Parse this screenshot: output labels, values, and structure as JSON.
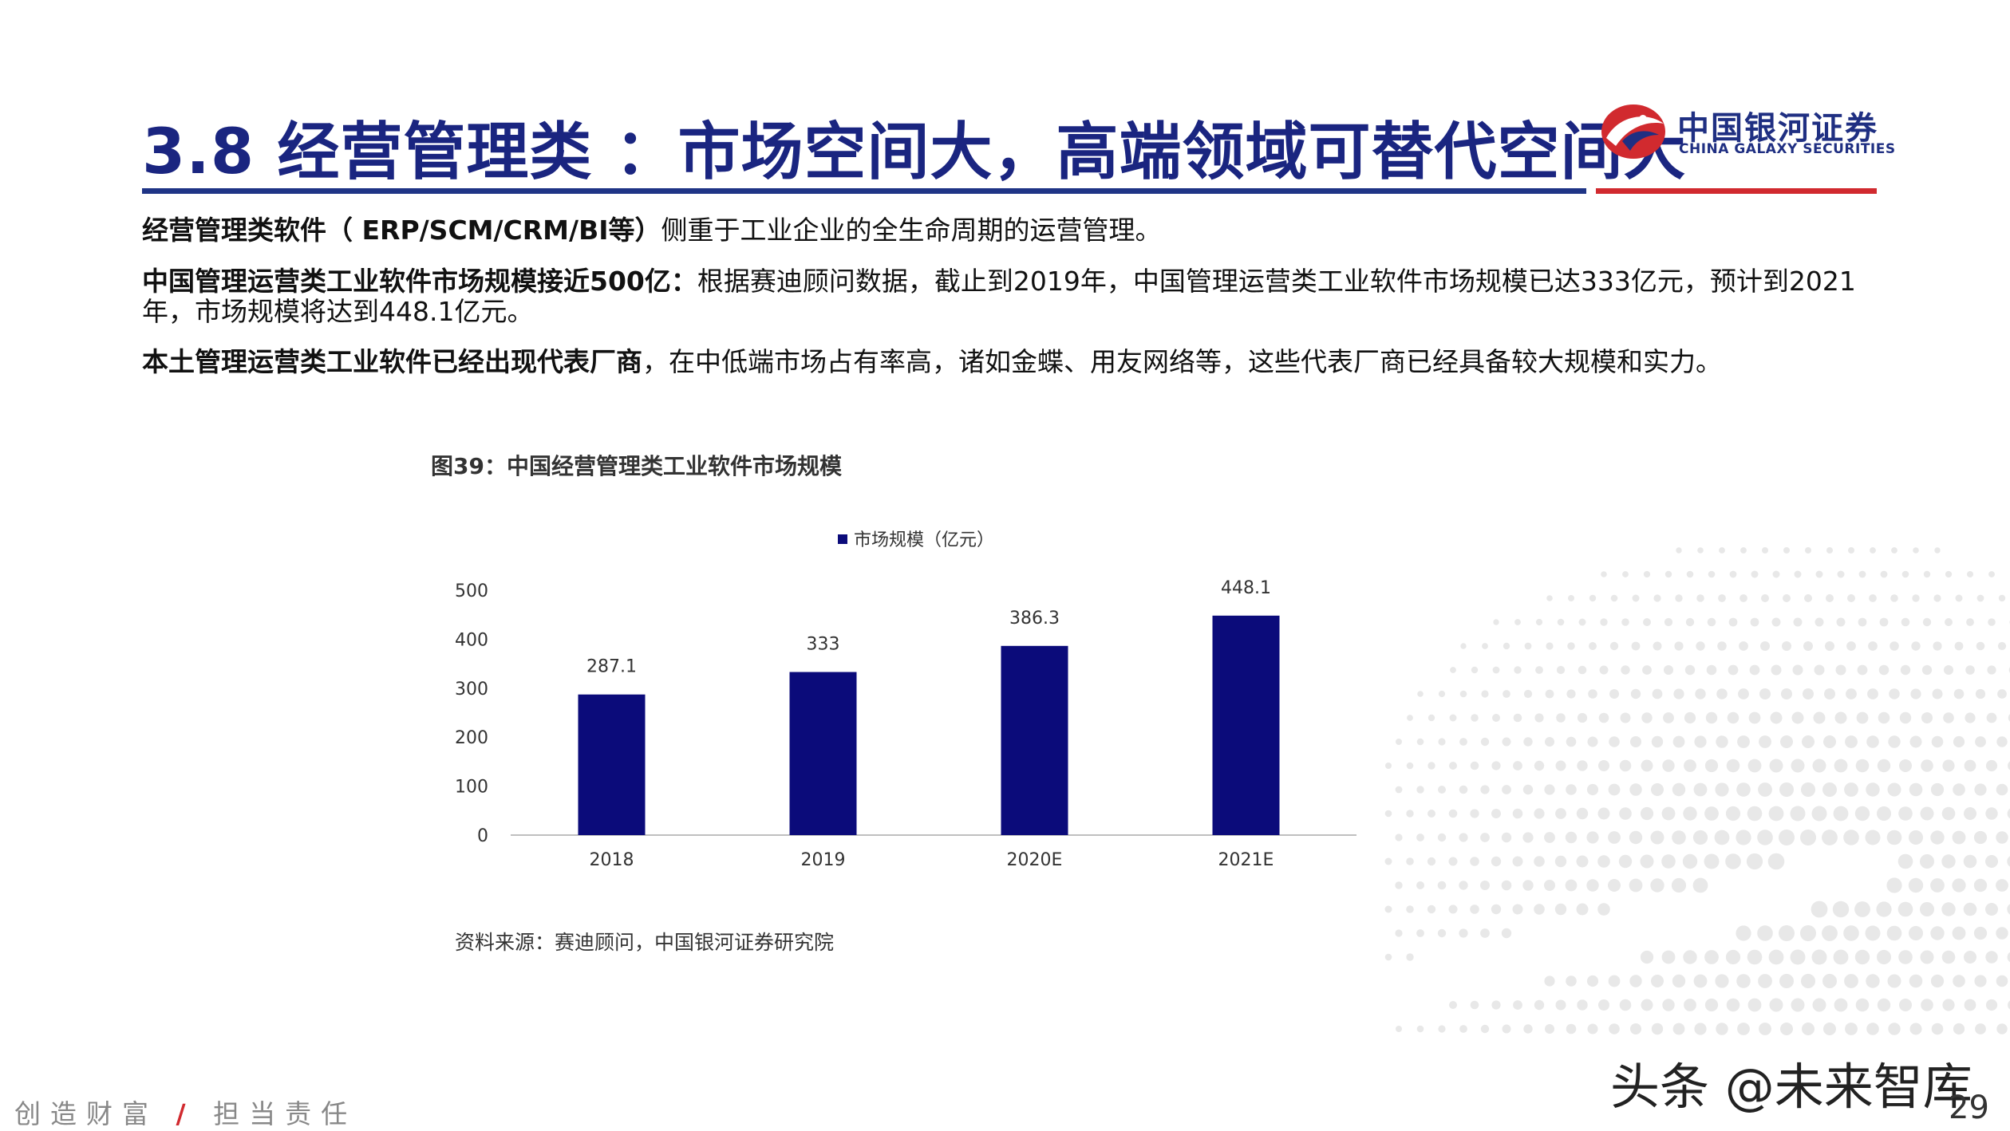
{
  "header": {
    "title": "3.8 经营管理类 ：市场空间大，高端领域可替代空间大",
    "logo_cn": "中国银河证券",
    "logo_en": "CHINA GALAXY SECURITIES"
  },
  "body": {
    "p1_bold": "经营管理类软件（ ERP/SCM/CRM/BI等）",
    "p1_rest": "侧重于工业企业的全生命周期的运营管理。",
    "p2_bold": "中国管理运营类工业软件市场规模接近500亿：",
    "p2_rest": "根据赛迪顾问数据，截止到2019年，中国管理运营类工业软件市场规模已达333亿元，预计到2021年，市场规模将达到448.1亿元。",
    "p3_bold": "本土管理运营类工业软件已经出现代表厂商",
    "p3_rest": "，在中低端市场占有率高，诸如金蝶、用友网络等，这些代表厂商已经具备较大规模和实力。"
  },
  "figure": {
    "caption": "图39：中国经营管理类工业软件市场规模",
    "source": "资料来源：赛迪顾问，中国银河证券研究院"
  },
  "chart_data": {
    "type": "bar",
    "categories": [
      "2018",
      "2019",
      "2020E",
      "2021E"
    ],
    "series": [
      {
        "name": "市场规模（亿元）",
        "values": [
          287.1,
          333,
          386.3,
          448.1
        ],
        "color": "#0b0b7a"
      }
    ],
    "data_labels": [
      "287.1",
      "333",
      "386.3",
      "448.1"
    ],
    "ylim": [
      0,
      500
    ],
    "yticks": [
      0,
      100,
      200,
      300,
      400,
      500
    ],
    "legend_position": "top",
    "grid": false
  },
  "footer": {
    "slogan_left": "创造财富",
    "slogan_sep": "/",
    "slogan_right": "担当责任",
    "watermark": "头条 @未来智库",
    "page_number": "29"
  },
  "colors": {
    "title": "#1a2580",
    "accent_blue": "#1f3486",
    "accent_red": "#d12a2f",
    "bar": "#0b0b7a"
  }
}
